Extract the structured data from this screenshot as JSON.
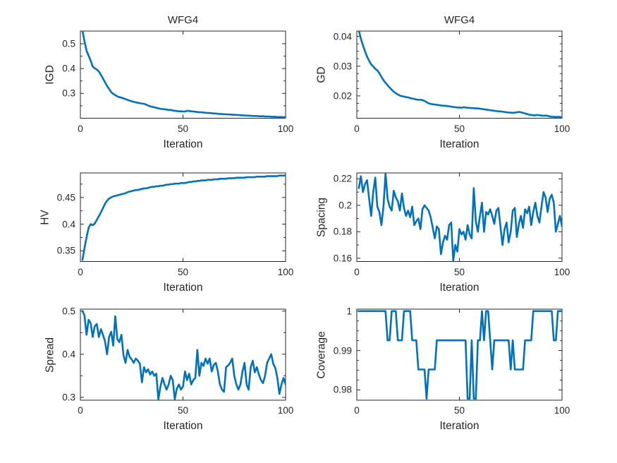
{
  "figure": {
    "background": "#ffffff",
    "text_color": "#262626",
    "line_color": "#0072BD"
  },
  "chart_data": [
    {
      "type": "line",
      "id": "igd",
      "title": "WFG4",
      "xlabel": "Iteration",
      "ylabel": "IGD",
      "x_start": 1,
      "xlim": [
        0,
        100
      ],
      "ylim": [
        0.2,
        0.551
      ],
      "xticks": [
        0,
        50,
        100
      ],
      "xticklabels": [
        "0",
        "50",
        "100"
      ],
      "yticks": [
        0.3,
        0.4,
        0.5
      ],
      "yticklabels": [
        "0.3",
        "0.4",
        "0.5"
      ],
      "yticks_minor": [
        0.25,
        0.35,
        0.45
      ],
      "grid": false,
      "legend": null,
      "series": [
        {
          "name": "IGD",
          "values": [
            0.553,
            0.51,
            0.472,
            0.452,
            0.432,
            0.408,
            0.401,
            0.396,
            0.388,
            0.375,
            0.36,
            0.345,
            0.33,
            0.318,
            0.305,
            0.298,
            0.293,
            0.288,
            0.285,
            0.283,
            0.28,
            0.277,
            0.274,
            0.271,
            0.268,
            0.266,
            0.264,
            0.262,
            0.261,
            0.259,
            0.258,
            0.255,
            0.251,
            0.248,
            0.246,
            0.244,
            0.242,
            0.24,
            0.238,
            0.237,
            0.236,
            0.235,
            0.233,
            0.234,
            0.231,
            0.23,
            0.229,
            0.228,
            0.228,
            0.227,
            0.227,
            0.23,
            0.229,
            0.228,
            0.227,
            0.226,
            0.225,
            0.224,
            0.224,
            0.223,
            0.222,
            0.221,
            0.221,
            0.22,
            0.219,
            0.219,
            0.218,
            0.217,
            0.217,
            0.216,
            0.216,
            0.215,
            0.215,
            0.214,
            0.214,
            0.213,
            0.213,
            0.212,
            0.212,
            0.211,
            0.211,
            0.21,
            0.21,
            0.209,
            0.209,
            0.209,
            0.208,
            0.208,
            0.208,
            0.207,
            0.207,
            0.207,
            0.206,
            0.206,
            0.206,
            0.205,
            0.205,
            0.205,
            0.204,
            0.204
          ]
        }
      ]
    },
    {
      "type": "line",
      "id": "gd",
      "title": "WFG4",
      "xlabel": "Iteration",
      "ylabel": "GD",
      "x_start": 1,
      "xlim": [
        0,
        100
      ],
      "ylim": [
        0.0125,
        0.0418
      ],
      "xticks": [
        0,
        50,
        100
      ],
      "xticklabels": [
        "0",
        "50",
        "100"
      ],
      "yticks": [
        0.02,
        0.03,
        0.04
      ],
      "yticklabels": [
        "0.02",
        "0.03",
        "0.04"
      ],
      "yticks_minor": [
        0.015,
        0.0175,
        0.0225,
        0.025,
        0.0275,
        0.0325,
        0.035,
        0.0375
      ],
      "grid": false,
      "legend": null,
      "series": [
        {
          "name": "GD",
          "values": [
            0.042,
            0.0392,
            0.037,
            0.035,
            0.0332,
            0.0318,
            0.0306,
            0.0299,
            0.0291,
            0.0286,
            0.0276,
            0.0264,
            0.0253,
            0.0244,
            0.0236,
            0.0228,
            0.0221,
            0.0214,
            0.0209,
            0.0205,
            0.0201,
            0.0199,
            0.0198,
            0.0196,
            0.0195,
            0.0193,
            0.0191,
            0.019,
            0.0188,
            0.0187,
            0.0187,
            0.0186,
            0.0183,
            0.0179,
            0.0175,
            0.0173,
            0.0172,
            0.0171,
            0.017,
            0.0169,
            0.0168,
            0.0167,
            0.0167,
            0.0166,
            0.0165,
            0.0164,
            0.0163,
            0.0162,
            0.0161,
            0.0161,
            0.016,
            0.0162,
            0.0161,
            0.016,
            0.016,
            0.0159,
            0.0159,
            0.0158,
            0.0158,
            0.0157,
            0.0156,
            0.0155,
            0.0154,
            0.0153,
            0.0152,
            0.0151,
            0.015,
            0.0149,
            0.0148,
            0.0148,
            0.0147,
            0.0146,
            0.0145,
            0.0144,
            0.0144,
            0.0143,
            0.0144,
            0.0145,
            0.0146,
            0.0145,
            0.0143,
            0.0141,
            0.0139,
            0.0137,
            0.0136,
            0.0135,
            0.0135,
            0.0136,
            0.0135,
            0.0134,
            0.0133,
            0.0134,
            0.0133,
            0.0131,
            0.013,
            0.013,
            0.0129,
            0.013,
            0.0129,
            0.0128
          ]
        }
      ]
    },
    {
      "type": "line",
      "id": "hv",
      "title": "",
      "xlabel": "Iteration",
      "ylabel": "HV",
      "x_start": 1,
      "xlim": [
        0,
        100
      ],
      "ylim": [
        0.33,
        0.496
      ],
      "xticks": [
        0,
        50,
        100
      ],
      "xticklabels": [
        "0",
        "50",
        "100"
      ],
      "yticks": [
        0.35,
        0.4,
        0.45
      ],
      "yticklabels": [
        "0.35",
        "0.4",
        "0.45"
      ],
      "yticks_minor": [
        0.375,
        0.425,
        0.475
      ],
      "grid": false,
      "legend": null,
      "series": [
        {
          "name": "HV",
          "values": [
            0.333,
            0.355,
            0.375,
            0.393,
            0.4,
            0.398,
            0.401,
            0.408,
            0.415,
            0.422,
            0.43,
            0.438,
            0.444,
            0.448,
            0.45,
            0.452,
            0.453,
            0.454,
            0.455,
            0.456,
            0.457,
            0.458,
            0.46,
            0.461,
            0.462,
            0.463,
            0.464,
            0.464,
            0.465,
            0.466,
            0.467,
            0.467,
            0.468,
            0.469,
            0.47,
            0.47,
            0.471,
            0.471,
            0.472,
            0.472,
            0.473,
            0.474,
            0.474,
            0.475,
            0.475,
            0.476,
            0.476,
            0.476,
            0.477,
            0.477,
            0.477,
            0.478,
            0.479,
            0.479,
            0.48,
            0.48,
            0.481,
            0.481,
            0.482,
            0.482,
            0.482,
            0.483,
            0.483,
            0.483,
            0.484,
            0.484,
            0.484,
            0.485,
            0.485,
            0.485,
            0.485,
            0.486,
            0.486,
            0.486,
            0.486,
            0.487,
            0.487,
            0.487,
            0.487,
            0.487,
            0.488,
            0.488,
            0.488,
            0.488,
            0.488,
            0.489,
            0.489,
            0.489,
            0.489,
            0.489,
            0.49,
            0.49,
            0.49,
            0.49,
            0.49,
            0.49,
            0.491,
            0.491,
            0.491,
            0.491
          ]
        }
      ]
    },
    {
      "type": "line",
      "id": "spacing",
      "title": "",
      "xlabel": "Iteration",
      "ylabel": "Spacing",
      "x_start": 1,
      "xlim": [
        0,
        100
      ],
      "ylim": [
        0.1575,
        0.2245
      ],
      "xticks": [
        0,
        50,
        100
      ],
      "xticklabels": [
        "0",
        "50",
        "100"
      ],
      "yticks": [
        0.16,
        0.18,
        0.2,
        0.22
      ],
      "yticklabels": [
        "0.16",
        "0.18",
        "0.2",
        "0.22"
      ],
      "yticks_minor": [
        0.17,
        0.19,
        0.21
      ],
      "grid": false,
      "legend": null,
      "series": [
        {
          "name": "Spacing",
          "values": [
            0.213,
            0.222,
            0.21,
            0.216,
            0.219,
            0.205,
            0.192,
            0.21,
            0.221,
            0.199,
            0.195,
            0.185,
            0.199,
            0.224,
            0.205,
            0.199,
            0.196,
            0.211,
            0.206,
            0.203,
            0.196,
            0.209,
            0.198,
            0.192,
            0.196,
            0.191,
            0.199,
            0.185,
            0.188,
            0.19,
            0.182,
            0.197,
            0.2,
            0.198,
            0.196,
            0.191,
            0.183,
            0.175,
            0.184,
            0.182,
            0.163,
            0.172,
            0.177,
            0.174,
            0.185,
            0.187,
            0.158,
            0.17,
            0.165,
            0.182,
            0.178,
            0.18,
            0.174,
            0.185,
            0.178,
            0.175,
            0.213,
            0.188,
            0.18,
            0.192,
            0.202,
            0.18,
            0.195,
            0.193,
            0.197,
            0.192,
            0.186,
            0.196,
            0.198,
            0.184,
            0.17,
            0.182,
            0.187,
            0.172,
            0.18,
            0.196,
            0.198,
            0.176,
            0.186,
            0.192,
            0.183,
            0.197,
            0.194,
            0.199,
            0.185,
            0.195,
            0.202,
            0.192,
            0.187,
            0.199,
            0.21,
            0.206,
            0.195,
            0.205,
            0.208,
            0.202,
            0.18,
            0.186,
            0.192,
            0.184
          ]
        }
      ]
    },
    {
      "type": "line",
      "id": "spread",
      "title": "",
      "xlabel": "Iteration",
      "ylabel": "Spread",
      "x_start": 1,
      "xlim": [
        0,
        100
      ],
      "ylim": [
        0.2935,
        0.5045
      ],
      "xticks": [
        0,
        50,
        100
      ],
      "xticklabels": [
        "0",
        "50",
        "100"
      ],
      "yticks": [
        0.3,
        0.4,
        0.5
      ],
      "yticklabels": [
        "0.3",
        "0.4",
        "0.5"
      ],
      "yticks_minor": [
        0.35,
        0.45
      ],
      "grid": false,
      "legend": null,
      "series": [
        {
          "name": "Spread",
          "values": [
            0.5,
            0.49,
            0.445,
            0.48,
            0.472,
            0.44,
            0.465,
            0.47,
            0.44,
            0.458,
            0.445,
            0.43,
            0.4,
            0.44,
            0.452,
            0.42,
            0.488,
            0.435,
            0.428,
            0.445,
            0.398,
            0.38,
            0.41,
            0.394,
            0.388,
            0.38,
            0.39,
            0.385,
            0.378,
            0.335,
            0.37,
            0.358,
            0.365,
            0.353,
            0.36,
            0.35,
            0.355,
            0.295,
            0.325,
            0.345,
            0.33,
            0.318,
            0.33,
            0.35,
            0.34,
            0.296,
            0.32,
            0.33,
            0.318,
            0.325,
            0.36,
            0.34,
            0.355,
            0.33,
            0.34,
            0.345,
            0.41,
            0.35,
            0.38,
            0.373,
            0.39,
            0.378,
            0.39,
            0.36,
            0.375,
            0.38,
            0.36,
            0.33,
            0.318,
            0.313,
            0.37,
            0.374,
            0.38,
            0.39,
            0.35,
            0.33,
            0.318,
            0.33,
            0.36,
            0.38,
            0.33,
            0.318,
            0.37,
            0.385,
            0.358,
            0.37,
            0.353,
            0.34,
            0.333,
            0.35,
            0.38,
            0.39,
            0.4,
            0.378,
            0.368,
            0.345,
            0.308,
            0.33,
            0.345,
            0.33
          ]
        }
      ]
    },
    {
      "type": "line",
      "id": "coverage",
      "title": "",
      "xlabel": "Iteration",
      "ylabel": "Coverage",
      "x_start": 1,
      "xlim": [
        0,
        100
      ],
      "ylim": [
        0.9774,
        1.0005
      ],
      "xticks": [
        0,
        50,
        100
      ],
      "xticklabels": [
        "0",
        "50",
        "100"
      ],
      "yticks": [
        0.98,
        0.99,
        1
      ],
      "yticklabels": [
        "0.98",
        "0.99",
        "1"
      ],
      "yticks_minor": [
        0.9825,
        0.985,
        0.9875,
        0.9925,
        0.995,
        0.9975
      ],
      "grid": false,
      "legend": null,
      "series": [
        {
          "name": "Coverage",
          "values": [
            1,
            1,
            1,
            1,
            1,
            1,
            1,
            1,
            1,
            1,
            1,
            1,
            1,
            1,
            0.99259,
            0.99259,
            1,
            1,
            1,
            0.99259,
            0.99259,
            0.99259,
            1,
            1,
            1,
            1,
            0.99259,
            0.99259,
            0.99259,
            0.98519,
            0.98519,
            0.98519,
            0.98519,
            0.97778,
            0.98519,
            0.98519,
            0.98519,
            0.98519,
            0.99259,
            0.99259,
            0.99259,
            0.99259,
            0.99259,
            0.99259,
            0.99259,
            0.99259,
            0.99259,
            0.99259,
            0.99259,
            0.99259,
            0.99259,
            0.99259,
            0.99259,
            0.97778,
            0.97778,
            0.99259,
            0.97778,
            0.97778,
            0.99259,
            0.99259,
            1,
            0.99259,
            1,
            1,
            0.99259,
            0.98519,
            0.99259,
            0.99259,
            0.99259,
            0.99259,
            0.99259,
            0.99259,
            0.99259,
            0.99259,
            0.98519,
            0.99259,
            0.98519,
            0.98519,
            0.98519,
            0.98519,
            0.98519,
            0.99259,
            0.99259,
            0.99259,
            0.99259,
            1,
            1,
            1,
            1,
            1,
            1,
            1,
            1,
            1,
            1,
            0.99259,
            0.99259,
            1,
            1,
            1
          ]
        }
      ]
    }
  ]
}
